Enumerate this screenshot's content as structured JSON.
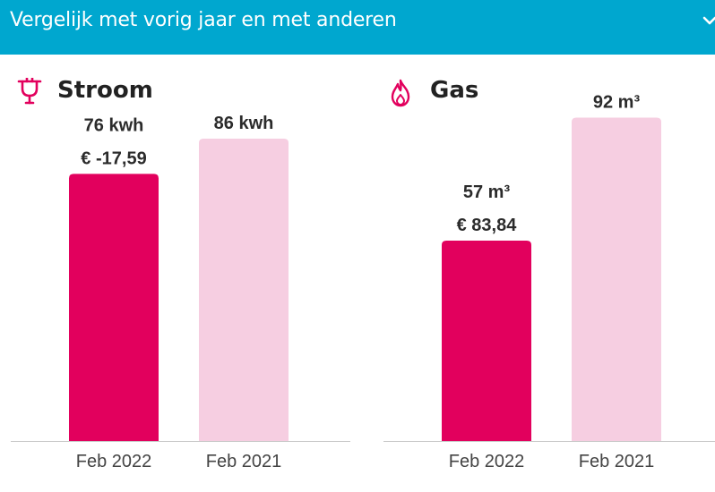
{
  "header": {
    "title": "Vergelijk met vorig jaar en met anderen",
    "chevron_icon": "chevron-down-icon",
    "background_color": "#00a7cf"
  },
  "chart_data": [
    {
      "type": "bar",
      "title": "Stroom",
      "icon": "plug-icon",
      "categories": [
        "Feb 2022",
        "Feb 2021"
      ],
      "values": [
        76,
        86
      ],
      "unit": "kwh",
      "value_labels": [
        "76 kwh",
        "86 kwh"
      ],
      "cost_labels": [
        "€ -17,59",
        ""
      ],
      "colors": [
        "#e2005d",
        "#f6cee1"
      ],
      "ylim": [
        0,
        100
      ]
    },
    {
      "type": "bar",
      "title": "Gas",
      "icon": "flame-icon",
      "categories": [
        "Feb 2022",
        "Feb 2021"
      ],
      "values": [
        57,
        92
      ],
      "unit": "m³",
      "value_labels": [
        "57 m³",
        "92 m³"
      ],
      "cost_labels": [
        "€ 83,84",
        ""
      ],
      "colors": [
        "#e2005d",
        "#f6cee1"
      ],
      "ylim": [
        0,
        100
      ]
    }
  ]
}
